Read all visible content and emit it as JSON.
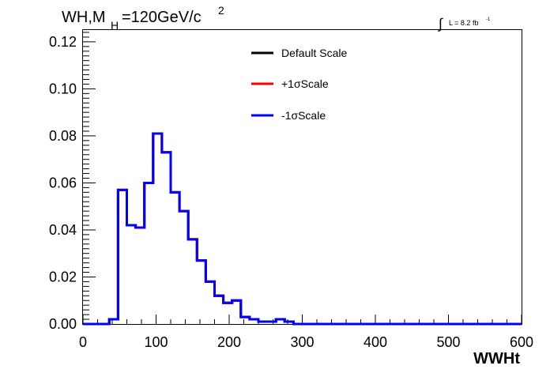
{
  "chart_data": {
    "type": "step-histogram",
    "title": "WH,M",
    "title_subscript": "H",
    "title_rest": "=120GeV/c",
    "title_superscript": "2",
    "luminosity_symbol": "∫",
    "luminosity_text": "L = 8.2 fb",
    "luminosity_superscript": "-1",
    "xlabel": "WWHt",
    "ylabel": "",
    "xlim": [
      0,
      600
    ],
    "ylim": [
      0,
      0.125
    ],
    "bin_width": 12,
    "x_ticks": [
      "0",
      "100",
      "200",
      "300",
      "400",
      "500",
      "600"
    ],
    "y_ticks": [
      "0.00",
      "0.02",
      "0.04",
      "0.06",
      "0.08",
      "0.10",
      "0.12"
    ],
    "legend_position": "top-center",
    "legend": [
      {
        "label": "Default Scale",
        "color": "#000000"
      },
      {
        "label": "+1σScale",
        "color": "#ff0000"
      },
      {
        "label": "-1σScale",
        "color": "#0000ff"
      }
    ],
    "series": [
      {
        "name": "Default Scale",
        "color": "#000000",
        "values": [
          0,
          0,
          0,
          0.002,
          0.057,
          0.042,
          0.041,
          0.06,
          0.081,
          0.073,
          0.056,
          0.048,
          0.036,
          0.027,
          0.018,
          0.012,
          0.009,
          0.01,
          0.003,
          0.002,
          0.001,
          0.001,
          0.002,
          0.001,
          0,
          0,
          0,
          0,
          0,
          0,
          0,
          0,
          0,
          0,
          0,
          0,
          0,
          0,
          0,
          0,
          0,
          0,
          0,
          0,
          0,
          0,
          0,
          0,
          0,
          0
        ]
      },
      {
        "name": "+1σScale",
        "color": "#ff0000",
        "values": [
          0,
          0,
          0,
          0.002,
          0.057,
          0.042,
          0.041,
          0.06,
          0.081,
          0.073,
          0.056,
          0.048,
          0.036,
          0.027,
          0.018,
          0.012,
          0.009,
          0.01,
          0.003,
          0.002,
          0.001,
          0.001,
          0.002,
          0.001,
          0,
          0,
          0,
          0,
          0,
          0,
          0,
          0,
          0,
          0,
          0,
          0,
          0,
          0,
          0,
          0,
          0,
          0,
          0,
          0,
          0,
          0,
          0,
          0,
          0,
          0
        ]
      },
      {
        "name": "-1σScale",
        "color": "#0000ff",
        "values": [
          0,
          0,
          0,
          0.002,
          0.057,
          0.042,
          0.041,
          0.06,
          0.081,
          0.073,
          0.056,
          0.048,
          0.036,
          0.027,
          0.018,
          0.012,
          0.009,
          0.01,
          0.003,
          0.002,
          0.001,
          0.001,
          0.002,
          0.001,
          0,
          0,
          0,
          0,
          0,
          0,
          0,
          0,
          0,
          0,
          0,
          0,
          0,
          0,
          0,
          0,
          0,
          0,
          0,
          0,
          0,
          0,
          0,
          0,
          0,
          0
        ]
      }
    ]
  }
}
